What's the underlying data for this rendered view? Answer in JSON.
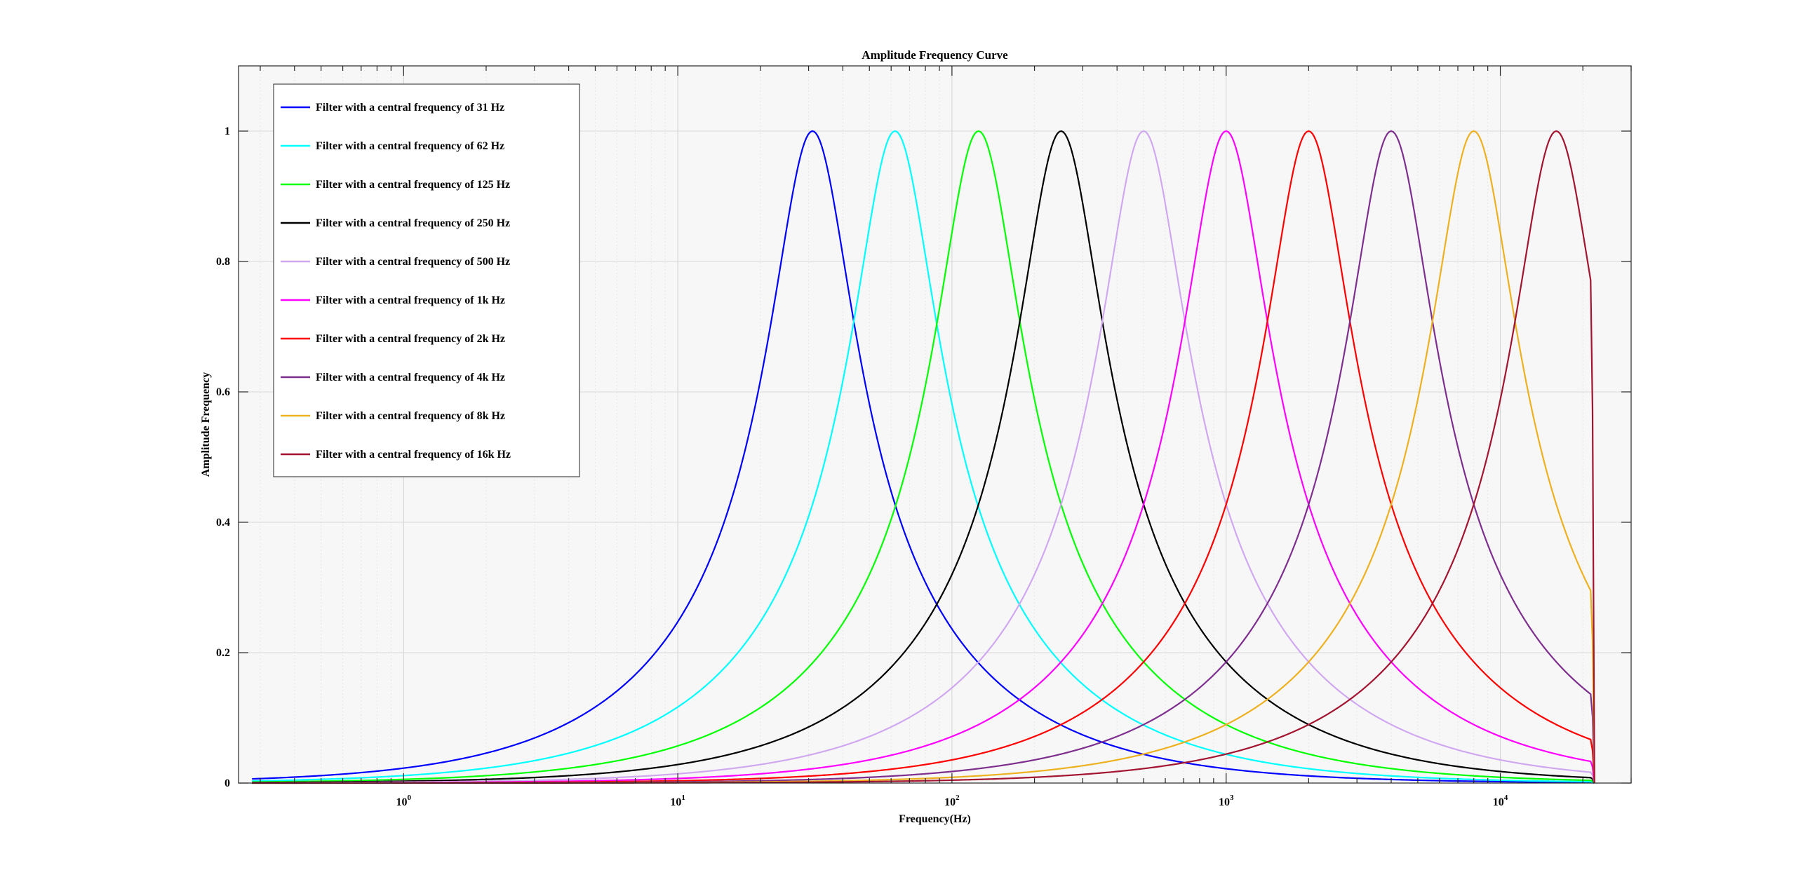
{
  "chart_data": {
    "type": "line",
    "title": "Amplitude Frequency Curve",
    "xlabel": "Frequency(Hz)",
    "ylabel": "Amplitude Frequency",
    "xscale": "log",
    "xlim": [
      0.25,
      30000
    ],
    "ylim": [
      0,
      1.1
    ],
    "x_end": 22050,
    "x_start": 0.28,
    "grid": true,
    "legend_position": "top-left",
    "xticks": [
      1,
      10,
      100,
      1000,
      10000
    ],
    "xtick_labels": [
      {
        "base": "10",
        "exp": "0"
      },
      {
        "base": "10",
        "exp": "1"
      },
      {
        "base": "10",
        "exp": "2"
      },
      {
        "base": "10",
        "exp": "3"
      },
      {
        "base": "10",
        "exp": "4"
      }
    ],
    "yticks": [
      0,
      0.2,
      0.4,
      0.6,
      0.8,
      1
    ],
    "ytick_labels": [
      "0",
      "0.2",
      "0.4",
      "0.6",
      "0.8",
      "1"
    ],
    "series": [
      {
        "name": "Filter with a central frequency of 31 Hz",
        "center": 31,
        "peak": 1,
        "color": "#0000ff"
      },
      {
        "name": "Filter with a central frequency of 62 Hz",
        "center": 62,
        "peak": 1,
        "color": "#00ffff"
      },
      {
        "name": "Filter with a central frequency of 125 Hz",
        "center": 125,
        "peak": 1,
        "color": "#00ff00"
      },
      {
        "name": "Filter with a central frequency of 250 Hz",
        "center": 250,
        "peak": 1,
        "color": "#000000"
      },
      {
        "name": "Filter with a central frequency of 500 Hz",
        "center": 500,
        "peak": 1,
        "color": "#d0a8f0"
      },
      {
        "name": "Filter with a central frequency of 1k Hz",
        "center": 1000,
        "peak": 1,
        "color": "#ff00ff"
      },
      {
        "name": "Filter with a central frequency of 2k Hz",
        "center": 2000,
        "peak": 1,
        "color": "#ff0000"
      },
      {
        "name": "Filter with a central frequency of 4k Hz",
        "center": 4000,
        "peak": 1,
        "color": "#7e2f8e"
      },
      {
        "name": "Filter with a central frequency of 8k Hz",
        "center": 8000,
        "peak": 1,
        "color": "#edb120"
      },
      {
        "name": "Filter with a central frequency of 16k Hz",
        "center": 16000,
        "peak": 1,
        "color": "#a2142f"
      }
    ]
  }
}
